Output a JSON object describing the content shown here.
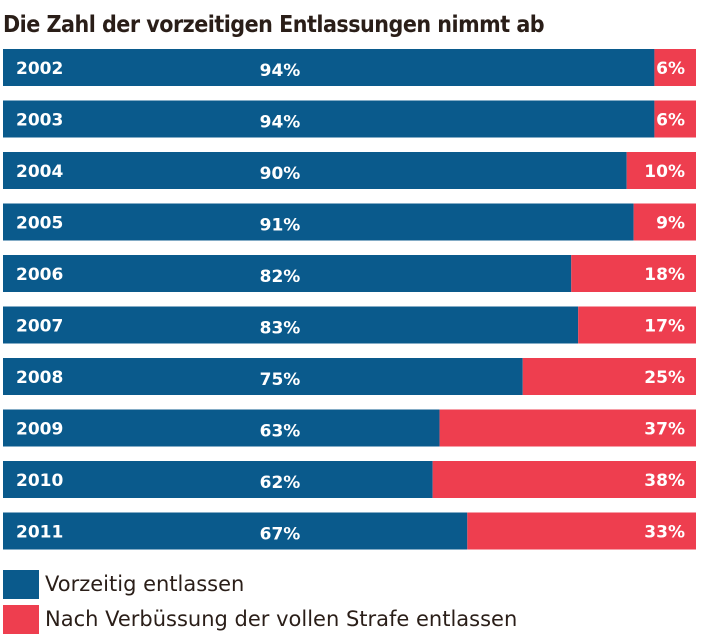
{
  "colors": {
    "early": "#0a5a8c",
    "full": "#ee3e4f",
    "text": "#2a1e18"
  },
  "chart_data": {
    "type": "bar",
    "orientation": "horizontal",
    "stacked": true,
    "normalized": true,
    "title": "Die Zahl der vorzeitigen Entlassungen nimmt ab",
    "categories": [
      "2002",
      "2003",
      "2004",
      "2005",
      "2006",
      "2007",
      "2008",
      "2009",
      "2010",
      "2011"
    ],
    "series": [
      {
        "name": "Vorzeitig entlassen",
        "values": [
          94,
          94,
          90,
          91,
          82,
          83,
          75,
          63,
          62,
          67
        ]
      },
      {
        "name": "Nach Verbüssung der vollen Strafe entlassen",
        "values": [
          6,
          6,
          10,
          9,
          18,
          17,
          25,
          37,
          38,
          33
        ]
      }
    ],
    "value_suffix": "%",
    "xlim": [
      0,
      100
    ],
    "grid": false,
    "legend": "bottom-left"
  }
}
